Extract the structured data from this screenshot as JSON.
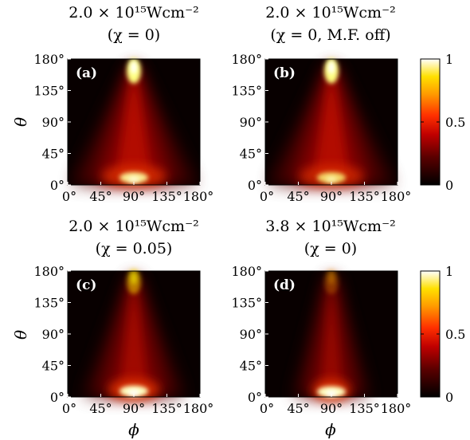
{
  "chart_data": [
    {
      "type": "heatmap",
      "panel_label": "(a)",
      "title_line1": "2.0 × 10¹⁵Wcm⁻²",
      "title_line2": "(χ = 0)",
      "xlabel": "",
      "ylabel": "θ",
      "x_ticks": [
        "0°",
        "45°",
        "90°",
        "135°",
        "180°"
      ],
      "y_ticks": [
        "0°",
        "45°",
        "90°",
        "135°",
        "180°"
      ],
      "xlim": [
        0,
        180
      ],
      "ylim": [
        0,
        180
      ],
      "colormap": "hot",
      "features": {
        "top_spot": {
          "phi": 90,
          "theta": 170,
          "intensity": 1.0
        },
        "bottom_spot": {
          "phi": 90,
          "theta": 8,
          "intensity": 0.9
        },
        "cone_spread": "wide"
      }
    },
    {
      "type": "heatmap",
      "panel_label": "(b)",
      "title_line1": "2.0 × 10¹⁵Wcm⁻²",
      "title_line2": "(χ = 0,  M.F. off)",
      "xlabel": "",
      "ylabel": "",
      "x_ticks": [
        "0°",
        "45°",
        "90°",
        "135°",
        "180°"
      ],
      "y_ticks": [
        "0°",
        "45°",
        "90°",
        "135°",
        "180°"
      ],
      "xlim": [
        0,
        180
      ],
      "ylim": [
        0,
        180
      ],
      "colormap": "hot",
      "features": {
        "top_spot": {
          "phi": 90,
          "theta": 170,
          "intensity": 1.0
        },
        "bottom_spot": {
          "phi": 90,
          "theta": 8,
          "intensity": 0.8
        },
        "cone_spread": "wide"
      }
    },
    {
      "type": "heatmap",
      "panel_label": "(c)",
      "title_line1": "2.0 × 10¹⁵Wcm⁻²",
      "title_line2": "(χ = 0.05)",
      "xlabel": "ϕ",
      "ylabel": "θ",
      "x_ticks": [
        "0°",
        "45°",
        "90°",
        "135°",
        "180°"
      ],
      "y_ticks": [
        "0°",
        "45°",
        "90°",
        "135°",
        "180°"
      ],
      "xlim": [
        0,
        180
      ],
      "ylim": [
        0,
        180
      ],
      "colormap": "hot",
      "features": {
        "top_spot": {
          "phi": 90,
          "theta": 172,
          "intensity": 0.55
        },
        "bottom_spot": {
          "phi": 90,
          "theta": 6,
          "intensity": 1.0
        },
        "cone_spread": "medium"
      }
    },
    {
      "type": "heatmap",
      "panel_label": "(d)",
      "title_line1": "3.8 × 10¹⁵Wcm⁻²",
      "title_line2": "(χ = 0)",
      "xlabel": "ϕ",
      "ylabel": "",
      "x_ticks": [
        "0°",
        "45°",
        "90°",
        "135°",
        "180°"
      ],
      "y_ticks": [
        "0°",
        "45°",
        "90°",
        "135°",
        "180°"
      ],
      "xlim": [
        0,
        180
      ],
      "ylim": [
        0,
        180
      ],
      "colormap": "hot",
      "features": {
        "top_spot": {
          "phi": 90,
          "theta": 172,
          "intensity": 0.3
        },
        "bottom_spot": {
          "phi": 90,
          "theta": 5,
          "intensity": 1.0
        },
        "cone_spread": "narrow"
      }
    }
  ],
  "colorbars": [
    {
      "ticks": [
        "0",
        "0.5",
        "1"
      ],
      "range": [
        0,
        1
      ],
      "colormap": "hot"
    },
    {
      "ticks": [
        "0",
        "0.5",
        "1"
      ],
      "range": [
        0,
        1
      ],
      "colormap": "hot"
    }
  ]
}
